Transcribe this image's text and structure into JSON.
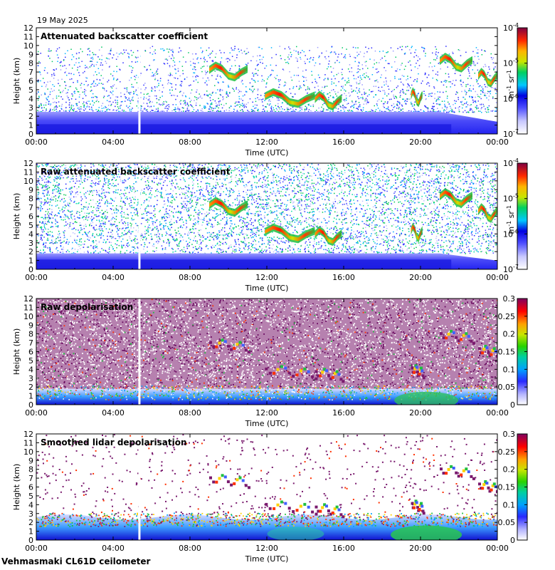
{
  "date_label": "19 May 2025",
  "footer_label": "Vehmasmaki CL61D ceilometer",
  "colors": {
    "background_low": "#2b2bf0",
    "missing_line": "#ffffff",
    "depol_noise": "#7a1a6e"
  },
  "chart_data": [
    {
      "type": "heatmap",
      "title": "Attenuated backscatter coefficient",
      "xlabel": "Time (UTC)",
      "ylabel": "Height (km)",
      "xlim": [
        0,
        24
      ],
      "ylim": [
        0,
        12
      ],
      "x_ticks": [
        "00:00",
        "04:00",
        "08:00",
        "12:00",
        "16:00",
        "20:00",
        "00:00"
      ],
      "y_ticks": [
        "0",
        "1",
        "2",
        "3",
        "4",
        "5",
        "6",
        "7",
        "8",
        "9",
        "10",
        "11",
        "12"
      ],
      "colorbar": {
        "scale": "log",
        "ticks": [
          "10-7",
          "10-6",
          "10-5",
          "10-4"
        ],
        "unit_label": "m-1 sr-1"
      },
      "noise_top_km": 10,
      "boundary_layer_km": 2.5,
      "cloud_layers": [
        {
          "start_h": 9.0,
          "end_h": 11.0,
          "height_km": 7.2
        },
        {
          "start_h": 11.9,
          "end_h": 14.5,
          "height_km": 4.2
        },
        {
          "start_h": 14.5,
          "end_h": 15.9,
          "height_km": 3.9
        },
        {
          "start_h": 19.5,
          "end_h": 20.1,
          "height_km": 4.3
        },
        {
          "start_h": 21.0,
          "end_h": 22.7,
          "height_km": 8.2
        },
        {
          "start_h": 23.0,
          "end_h": 24.0,
          "height_km": 6.5
        }
      ]
    },
    {
      "type": "heatmap",
      "title": "Raw attenuated backscatter coefficient",
      "xlabel": "Time (UTC)",
      "ylabel": "Height (km)",
      "xlim": [
        0,
        24
      ],
      "ylim": [
        0,
        12
      ],
      "x_ticks": [
        "00:00",
        "04:00",
        "08:00",
        "12:00",
        "16:00",
        "20:00",
        "00:00"
      ],
      "y_ticks": [
        "0",
        "1",
        "2",
        "3",
        "4",
        "5",
        "6",
        "7",
        "8",
        "9",
        "10",
        "11",
        "12"
      ],
      "colorbar": {
        "scale": "log",
        "ticks": [
          "10-7",
          "10-6",
          "10-5",
          "10-4"
        ],
        "unit_label": "m-1 sr-1"
      },
      "noise_top_km": 12,
      "boundary_layer_km": 1.8
    },
    {
      "type": "heatmap",
      "title": "Raw depolarisation",
      "xlabel": "Time (UTC)",
      "ylabel": "Height (km)",
      "xlim": [
        0,
        24
      ],
      "ylim": [
        0,
        12
      ],
      "x_ticks": [
        "00:00",
        "04:00",
        "08:00",
        "12:00",
        "16:00",
        "20:00",
        "00:00"
      ],
      "y_ticks": [
        "0",
        "1",
        "2",
        "3",
        "4",
        "5",
        "6",
        "7",
        "8",
        "9",
        "10",
        "11",
        "12"
      ],
      "colorbar": {
        "scale": "linear",
        "range": [
          0,
          0.3
        ],
        "ticks": [
          "0",
          "0.05",
          "0.1",
          "0.15",
          "0.2",
          "0.25",
          "0.3"
        ]
      }
    },
    {
      "type": "heatmap",
      "title": "Smoothed lidar depolarisation",
      "xlabel": "Time (UTC)",
      "ylabel": "Height (km)",
      "xlim": [
        0,
        24
      ],
      "ylim": [
        0,
        12
      ],
      "x_ticks": [
        "00:00",
        "04:00",
        "08:00",
        "12:00",
        "16:00",
        "20:00",
        "00:00"
      ],
      "y_ticks": [
        "0",
        "1",
        "2",
        "3",
        "4",
        "5",
        "6",
        "7",
        "8",
        "9",
        "10",
        "11",
        "12"
      ],
      "colorbar": {
        "scale": "linear",
        "range": [
          0,
          0.3
        ],
        "ticks": [
          "0",
          "0.05",
          "0.1",
          "0.15",
          "0.2",
          "0.25",
          "0.3"
        ]
      }
    }
  ]
}
